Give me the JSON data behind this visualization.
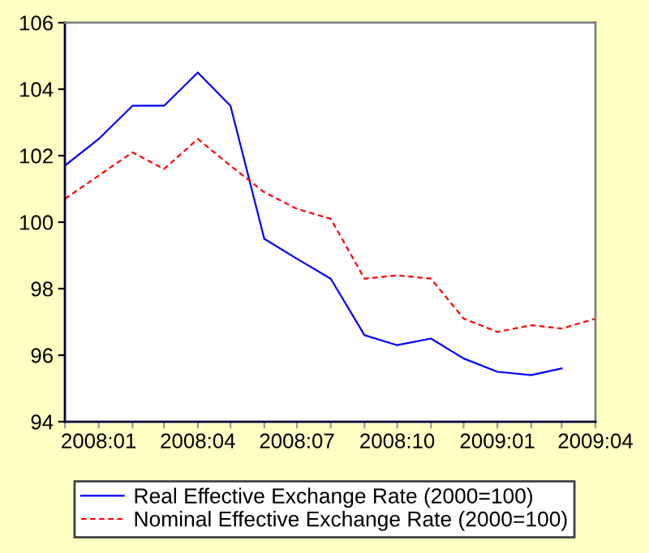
{
  "chart_data": {
    "type": "line",
    "x": [
      "2007-12",
      "2008-01",
      "2008-02",
      "2008-03",
      "2008-04",
      "2008-05",
      "2008-06",
      "2008-07",
      "2008-08",
      "2008-09",
      "2008-10",
      "2008-11",
      "2008-12",
      "2009-01",
      "2009-02",
      "2009-03",
      "2009-04"
    ],
    "series": [
      {
        "name": "Real Effective Exchange Rate (2000=100)",
        "color": "#0000ff",
        "line_style": "solid",
        "values": [
          101.7,
          102.5,
          103.5,
          103.5,
          104.5,
          103.5,
          99.5,
          98.9,
          98.3,
          96.6,
          96.3,
          96.5,
          95.9,
          95.5,
          95.4,
          95.6,
          null
        ]
      },
      {
        "name": "Nominal Effective Exchange Rate (2000=100)",
        "color": "#ff0000",
        "line_style": "dashed",
        "values": [
          100.7,
          101.4,
          102.1,
          101.6,
          102.5,
          101.7,
          100.9,
          100.4,
          100.1,
          98.3,
          98.4,
          98.3,
          97.1,
          96.7,
          96.9,
          96.8,
          97.1
        ]
      }
    ],
    "xlim": [
      "2007-12",
      "2009-04"
    ],
    "xticks": [
      {
        "value": "2007-12",
        "label": null
      },
      {
        "value": "2008-01",
        "label": "2008:01"
      },
      {
        "value": "2008-02",
        "label": null
      },
      {
        "value": "2008-03",
        "label": null
      },
      {
        "value": "2008-04",
        "label": "2008:04"
      },
      {
        "value": "2008-05",
        "label": null
      },
      {
        "value": "2008-06",
        "label": null
      },
      {
        "value": "2008-07",
        "label": "2008:07"
      },
      {
        "value": "2008-08",
        "label": null
      },
      {
        "value": "2008-09",
        "label": null
      },
      {
        "value": "2008-10",
        "label": "2008:10"
      },
      {
        "value": "2008-11",
        "label": null
      },
      {
        "value": "2008-12",
        "label": null
      },
      {
        "value": "2009-01",
        "label": "2009:01"
      },
      {
        "value": "2009-02",
        "label": null
      },
      {
        "value": "2009-03",
        "label": null
      },
      {
        "value": "2009-04",
        "label": "2009:04"
      }
    ],
    "ylim": [
      94,
      106
    ],
    "yticks": [
      94,
      96,
      98,
      100,
      102,
      104,
      106
    ],
    "legend": "bottom"
  }
}
